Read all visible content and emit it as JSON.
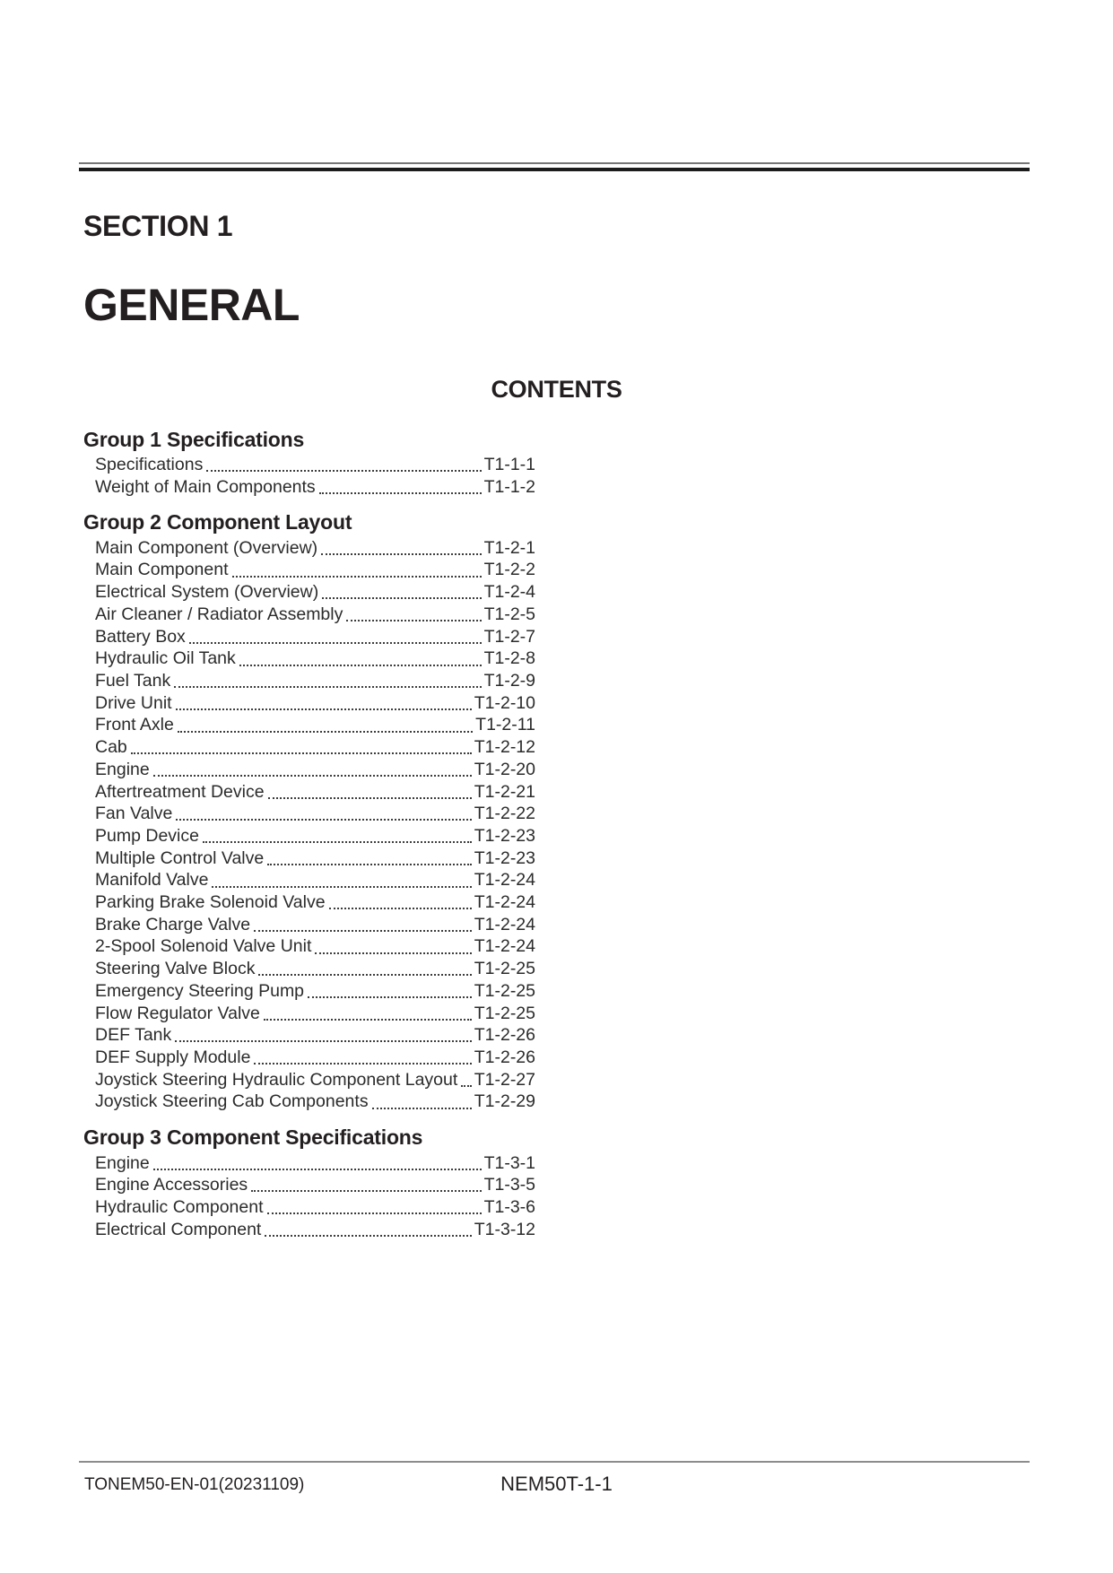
{
  "header": {
    "section_label": "SECTION 1",
    "title": "GENERAL",
    "contents_heading": "CONTENTS"
  },
  "toc": {
    "groups": [
      {
        "heading": "Group 1 Specifications",
        "items": [
          {
            "title": "Specifications",
            "page": "T1-1-1"
          },
          {
            "title": "Weight of Main Components",
            "page": "T1-1-2"
          }
        ]
      },
      {
        "heading": "Group 2 Component Layout",
        "items": [
          {
            "title": "Main Component (Overview)",
            "page": "T1-2-1"
          },
          {
            "title": "Main Component",
            "page": "T1-2-2"
          },
          {
            "title": "Electrical System (Overview)",
            "page": "T1-2-4"
          },
          {
            "title": "Air Cleaner / Radiator Assembly",
            "page": "T1-2-5"
          },
          {
            "title": "Battery Box",
            "page": "T1-2-7"
          },
          {
            "title": "Hydraulic Oil Tank",
            "page": "T1-2-8"
          },
          {
            "title": "Fuel Tank",
            "page": "T1-2-9"
          },
          {
            "title": "Drive Unit",
            "page": "T1-2-10"
          },
          {
            "title": "Front Axle",
            "page": "T1-2-11"
          },
          {
            "title": "Cab",
            "page": "T1-2-12"
          },
          {
            "title": "Engine",
            "page": "T1-2-20"
          },
          {
            "title": "Aftertreatment Device",
            "page": "T1-2-21"
          },
          {
            "title": "Fan Valve",
            "page": "T1-2-22"
          },
          {
            "title": "Pump Device",
            "page": "T1-2-23"
          },
          {
            "title": "Multiple Control Valve",
            "page": "T1-2-23"
          },
          {
            "title": "Manifold Valve",
            "page": "T1-2-24"
          },
          {
            "title": "Parking Brake Solenoid Valve",
            "page": "T1-2-24"
          },
          {
            "title": "Brake Charge Valve",
            "page": "T1-2-24"
          },
          {
            "title": "2-Spool Solenoid Valve Unit",
            "page": "T1-2-24"
          },
          {
            "title": "Steering Valve Block",
            "page": "T1-2-25"
          },
          {
            "title": "Emergency Steering Pump",
            "page": "T1-2-25"
          },
          {
            "title": "Flow Regulator Valve",
            "page": "T1-2-25"
          },
          {
            "title": "DEF Tank",
            "page": "T1-2-26"
          },
          {
            "title": "DEF Supply Module",
            "page": "T1-2-26"
          },
          {
            "title": "Joystick Steering Hydraulic Component Layout",
            "page": "T1-2-27"
          },
          {
            "title": "Joystick Steering Cab Components",
            "page": "T1-2-29"
          }
        ]
      },
      {
        "heading": "Group 3 Component Specifications",
        "items": [
          {
            "title": "Engine",
            "page": "T1-3-1"
          },
          {
            "title": "Engine Accessories",
            "page": "T1-3-5"
          },
          {
            "title": "Hydraulic Component",
            "page": "T1-3-6"
          },
          {
            "title": "Electrical Component",
            "page": "T1-3-12"
          }
        ]
      }
    ]
  },
  "footer": {
    "doc_code": "TONEM50-EN-01(20231109)",
    "page_code": "NEM50T-1-1"
  }
}
